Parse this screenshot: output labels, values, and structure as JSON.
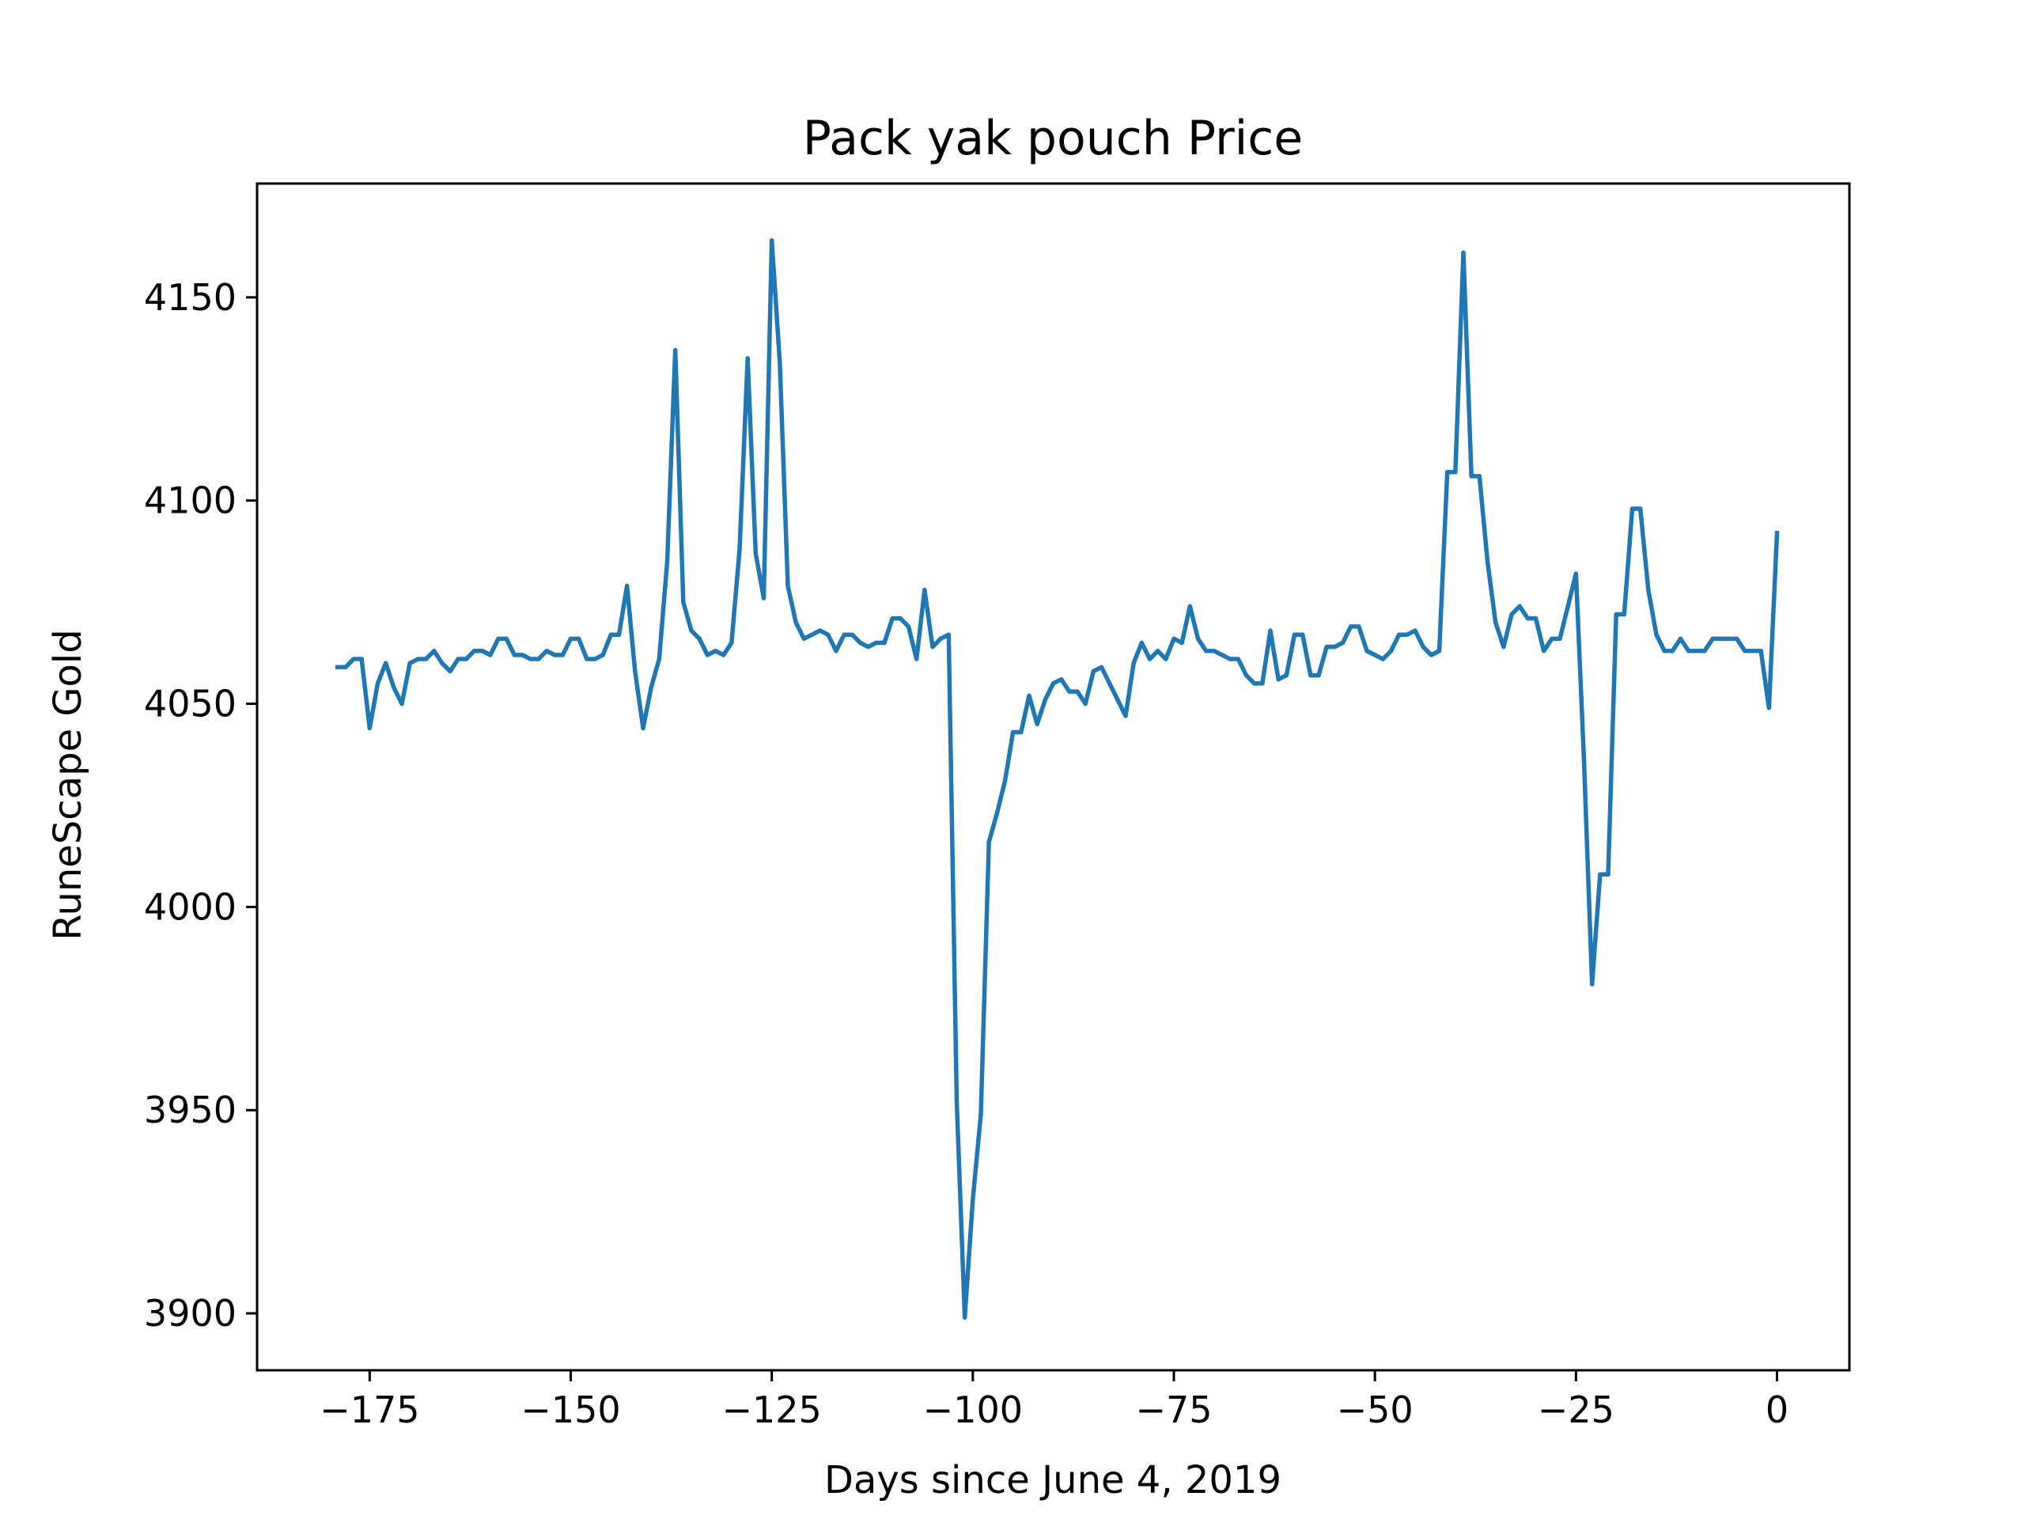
{
  "chart_data": {
    "type": "line",
    "title": "Pack yak pouch Price",
    "xlabel": "Days since June 4, 2019",
    "ylabel": "RuneScape Gold",
    "xlim": [
      -189,
      9
    ],
    "ylim": [
      3886,
      4178
    ],
    "x_ticks": [
      -175,
      -150,
      -125,
      -100,
      -75,
      -50,
      -25,
      0
    ],
    "x_tick_labels": [
      "−175",
      "−150",
      "−125",
      "−100",
      "−75",
      "−50",
      "−25",
      "0"
    ],
    "y_ticks": [
      3900,
      3950,
      4000,
      4050,
      4100,
      4150
    ],
    "y_tick_labels": [
      "3900",
      "3950",
      "4000",
      "4050",
      "4100",
      "4150"
    ],
    "grid": false,
    "legend": "none",
    "line_color": "#1f77b4",
    "series": [
      {
        "x": [
          -179,
          -178,
          -177,
          -176,
          -175,
          -174,
          -173,
          -172,
          -171,
          -170,
          -169,
          -168,
          -167,
          -166,
          -165,
          -164,
          -163,
          -162,
          -161,
          -160,
          -159,
          -158,
          -157,
          -156,
          -155,
          -154,
          -153,
          -152,
          -151,
          -150,
          -149,
          -148,
          -147,
          -146,
          -145,
          -144,
          -143,
          -142,
          -141,
          -140,
          -139,
          -138,
          -137,
          -136,
          -135,
          -134,
          -133,
          -132,
          -131,
          -130,
          -129,
          -128,
          -127,
          -126,
          -125,
          -124,
          -123,
          -122,
          -121,
          -120,
          -119,
          -118,
          -117,
          -116,
          -115,
          -114,
          -113,
          -112,
          -111,
          -110,
          -109,
          -108,
          -107,
          -106,
          -105,
          -104,
          -103,
          -102,
          -101,
          -100,
          -99,
          -98,
          -97,
          -96,
          -95,
          -94,
          -93,
          -92,
          -91,
          -90,
          -89,
          -88,
          -87,
          -86,
          -85,
          -84,
          -83,
          -82,
          -81,
          -80,
          -79,
          -78,
          -77,
          -76,
          -75,
          -74,
          -73,
          -72,
          -71,
          -70,
          -69,
          -68,
          -67,
          -66,
          -65,
          -64,
          -63,
          -62,
          -61,
          -60,
          -59,
          -58,
          -57,
          -56,
          -55,
          -54,
          -53,
          -52,
          -51,
          -50,
          -49,
          -48,
          -47,
          -46,
          -45,
          -44,
          -43,
          -42,
          -41,
          -40,
          -39,
          -38,
          -37,
          -36,
          -35,
          -34,
          -33,
          -32,
          -31,
          -30,
          -29,
          -28,
          -27,
          -26,
          -25,
          -24,
          -23,
          -22,
          -21,
          -20,
          -19,
          -18,
          -17,
          -16,
          -15,
          -14,
          -13,
          -12,
          -11,
          -10,
          -9,
          -8,
          -7,
          -6,
          -5,
          -4,
          -3,
          -2,
          -1,
          0
        ],
        "y": [
          4059,
          4059,
          4061,
          4061,
          4044,
          4055,
          4060,
          4054,
          4050,
          4060,
          4061,
          4061,
          4063,
          4060,
          4058,
          4061,
          4061,
          4063,
          4063,
          4062,
          4066,
          4066,
          4062,
          4062,
          4061,
          4061,
          4063,
          4062,
          4062,
          4066,
          4066,
          4061,
          4061,
          4062,
          4067,
          4067,
          4079,
          4058,
          4044,
          4054,
          4061,
          4085,
          4137,
          4075,
          4068,
          4066,
          4062,
          4063,
          4062,
          4065,
          4088,
          4135,
          4087,
          4076,
          4164,
          4134,
          4079,
          4070,
          4066,
          4067,
          4068,
          4067,
          4063,
          4067,
          4067,
          4065,
          4064,
          4065,
          4065,
          4071,
          4071,
          4069,
          4061,
          4078,
          4064,
          4066,
          4067,
          3952,
          3899,
          3928,
          3949,
          4016,
          4023,
          4031,
          4043,
          4043,
          4052,
          4045,
          4051,
          4055,
          4056,
          4053,
          4053,
          4050,
          4058,
          4059,
          4055,
          4051,
          4047,
          4060,
          4065,
          4061,
          4063,
          4061,
          4066,
          4065,
          4074,
          4066,
          4063,
          4063,
          4062,
          4061,
          4061,
          4057,
          4055,
          4055,
          4068,
          4056,
          4057,
          4067,
          4067,
          4057,
          4057,
          4064,
          4064,
          4065,
          4069,
          4069,
          4063,
          4062,
          4061,
          4063,
          4067,
          4067,
          4068,
          4064,
          4062,
          4063,
          4107,
          4107,
          4161,
          4106,
          4106,
          4085,
          4070,
          4064,
          4072,
          4074,
          4071,
          4071,
          4063,
          4066,
          4066,
          4074,
          4082,
          4036,
          3981,
          4008,
          4008,
          4072,
          4072,
          4098,
          4098,
          4078,
          4067,
          4063,
          4063,
          4066,
          4063,
          4063,
          4063,
          4066,
          4066,
          4066,
          4066,
          4063,
          4063,
          4063,
          4049,
          4092
        ]
      }
    ]
  }
}
